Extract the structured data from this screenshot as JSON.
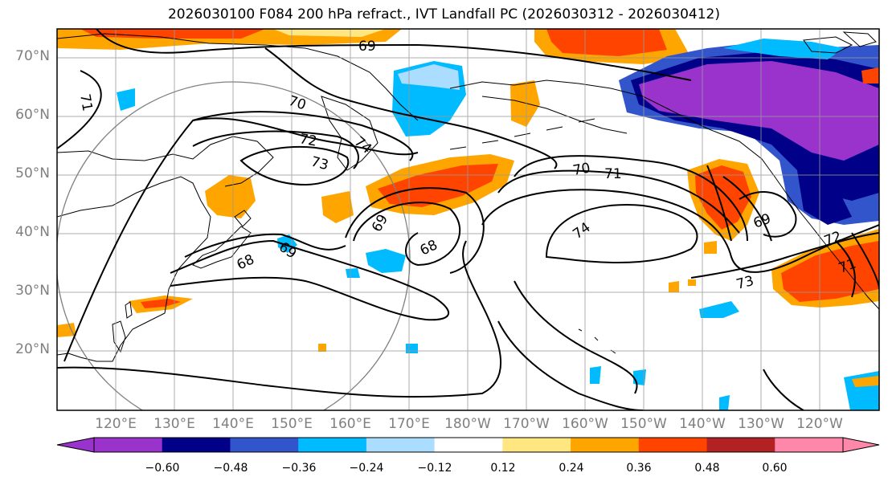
{
  "title": "2026030100 F084 200 hPa refract., IVT Landfall PC (2026030312 - 2026030412)",
  "map": {
    "lat_labels": [
      "70°N",
      "60°N",
      "50°N",
      "40°N",
      "30°N",
      "20°N"
    ],
    "lon_labels": [
      "120°E",
      "130°E",
      "140°E",
      "150°E",
      "160°E",
      "170°E",
      "180°W",
      "170°W",
      "160°W",
      "150°W",
      "140°W",
      "130°W",
      "120°W"
    ],
    "contour_labels": [
      "69",
      "70",
      "71",
      "72",
      "73",
      "74",
      "68",
      "69",
      "68",
      "69",
      "70",
      "71",
      "69",
      "74",
      "72",
      "73",
      "71"
    ]
  },
  "colorbar": {
    "colors": [
      "#9933cc",
      "#000088",
      "#3355cc",
      "#00bbff",
      "#aaddff",
      "#ffffff",
      "#ffe680",
      "#ffa500",
      "#ff4400",
      "#b22222",
      "#ff88aa"
    ],
    "ticks": [
      "−0.60",
      "−0.48",
      "−0.36",
      "−0.24",
      "−0.12",
      "0.12",
      "0.24",
      "0.36",
      "0.48",
      "0.60"
    ]
  }
}
